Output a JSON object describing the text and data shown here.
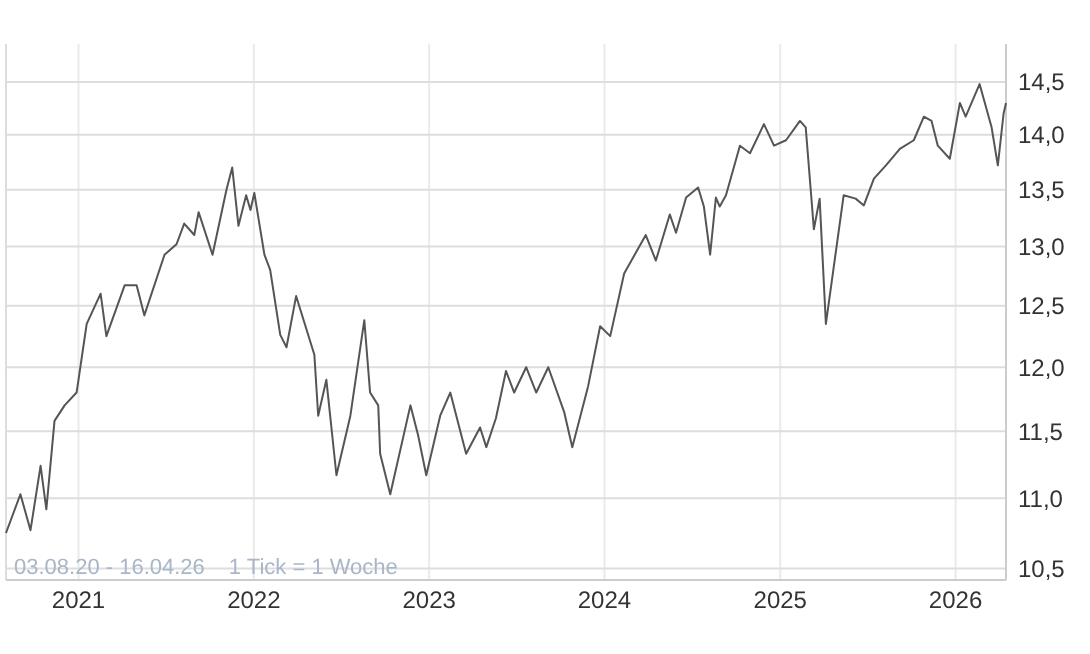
{
  "chart_data": {
    "type": "line",
    "log": "y",
    "grid": true,
    "xlim": [
      "2020-08-03",
      "2026-04-16"
    ],
    "xticks": [
      {
        "value": "2021-01-01",
        "label": "2021"
      },
      {
        "value": "2022-01-01",
        "label": "2022"
      },
      {
        "value": "2023-01-01",
        "label": "2023"
      },
      {
        "value": "2024-01-01",
        "label": "2024"
      },
      {
        "value": "2025-01-01",
        "label": "2025"
      },
      {
        "value": "2026-01-01",
        "label": "2026"
      }
    ],
    "ylim": [
      10.42,
      14.87
    ],
    "yticks": [
      {
        "value": 10.5,
        "label": "10,5"
      },
      {
        "value": 11,
        "label": "11,0"
      },
      {
        "value": 11.5,
        "label": "11,5"
      },
      {
        "value": 12,
        "label": "12,0"
      },
      {
        "value": 12.5,
        "label": "12,5"
      },
      {
        "value": 13,
        "label": "13,0"
      },
      {
        "value": 13.5,
        "label": "13,5"
      },
      {
        "value": 14,
        "label": "14,0"
      },
      {
        "value": 14.5,
        "label": "14,5"
      }
    ],
    "annotations": [
      "03.08.20 - 16.04.26",
      "1 Tick = 1 Woche"
    ],
    "x": [
      "2020-08-03",
      "2020-09-02",
      "2020-09-23",
      "2020-10-14",
      "2020-10-26",
      "2020-11-12",
      "2020-12-03",
      "2020-12-28",
      "2021-01-18",
      "2021-02-16",
      "2021-02-28",
      "2021-04-07",
      "2021-05-02",
      "2021-05-18",
      "2021-06-29",
      "2021-07-24",
      "2021-08-09",
      "2021-08-30",
      "2021-09-08",
      "2021-10-07",
      "2021-11-05",
      "2021-11-17",
      "2021-11-30",
      "2021-12-16",
      "2021-12-25",
      "2022-01-02",
      "2022-01-23",
      "2022-02-04",
      "2022-02-25",
      "2022-03-10",
      "2022-03-30",
      "2022-05-07",
      "2022-05-15",
      "2022-06-01",
      "2022-06-22",
      "2022-07-21",
      "2022-08-19",
      "2022-08-31",
      "2022-09-17",
      "2022-09-21",
      "2022-10-12",
      "2022-11-23",
      "2022-12-09",
      "2022-12-26",
      "2023-01-24",
      "2023-02-14",
      "2023-03-19",
      "2023-04-17",
      "2023-04-30",
      "2023-05-20",
      "2023-06-10",
      "2023-06-27",
      "2023-07-22",
      "2023-08-12",
      "2023-09-06",
      "2023-10-09",
      "2023-10-26",
      "2023-11-28",
      "2023-12-23",
      "2024-01-13",
      "2024-02-11",
      "2024-03-27",
      "2024-04-17",
      "2024-05-16",
      "2024-05-29",
      "2024-06-19",
      "2024-07-14",
      "2024-07-26",
      "2024-08-08",
      "2024-08-20",
      "2024-08-28",
      "2024-09-10",
      "2024-10-09",
      "2024-10-30",
      "2024-11-28",
      "2024-12-19",
      "2025-01-13",
      "2025-02-11",
      "2025-02-23",
      "2025-03-12",
      "2025-03-24",
      "2025-04-06",
      "2025-05-13",
      "2025-06-07",
      "2025-06-24",
      "2025-07-15",
      "2025-08-09",
      "2025-09-07",
      "2025-10-06",
      "2025-10-27",
      "2025-11-12",
      "2025-11-25",
      "2025-12-20",
      "2026-01-10",
      "2026-01-22",
      "2026-02-20",
      "2026-03-17",
      "2026-03-30",
      "2026-04-11",
      "2026-04-16"
    ],
    "series": [
      {
        "color": "#555555",
        "values": [
          10.75,
          11.03,
          10.77,
          11.24,
          10.92,
          11.58,
          11.7,
          11.8,
          12.35,
          12.6,
          12.25,
          12.67,
          12.67,
          12.42,
          12.93,
          13.02,
          13.2,
          13.1,
          13.3,
          12.93,
          13.5,
          13.7,
          13.18,
          13.45,
          13.32,
          13.47,
          12.93,
          12.8,
          12.26,
          12.16,
          12.58,
          12.1,
          11.62,
          11.9,
          11.17,
          11.62,
          12.38,
          11.8,
          11.7,
          11.33,
          11.03,
          11.7,
          11.47,
          11.17,
          11.62,
          11.8,
          11.33,
          11.53,
          11.38,
          11.6,
          11.97,
          11.8,
          12.0,
          11.8,
          12.0,
          11.65,
          11.38,
          11.85,
          12.33,
          12.25,
          12.77,
          13.1,
          12.88,
          13.28,
          13.12,
          13.43,
          13.52,
          13.35,
          12.93,
          13.43,
          13.35,
          13.45,
          13.9,
          13.83,
          14.1,
          13.9,
          13.95,
          14.13,
          14.07,
          13.15,
          13.42,
          12.35,
          13.45,
          13.42,
          13.36,
          13.6,
          13.72,
          13.87,
          13.95,
          14.17,
          14.13,
          13.9,
          13.78,
          14.3,
          14.17,
          14.48,
          14.07,
          13.72,
          14.2,
          14.3
        ]
      }
    ]
  }
}
